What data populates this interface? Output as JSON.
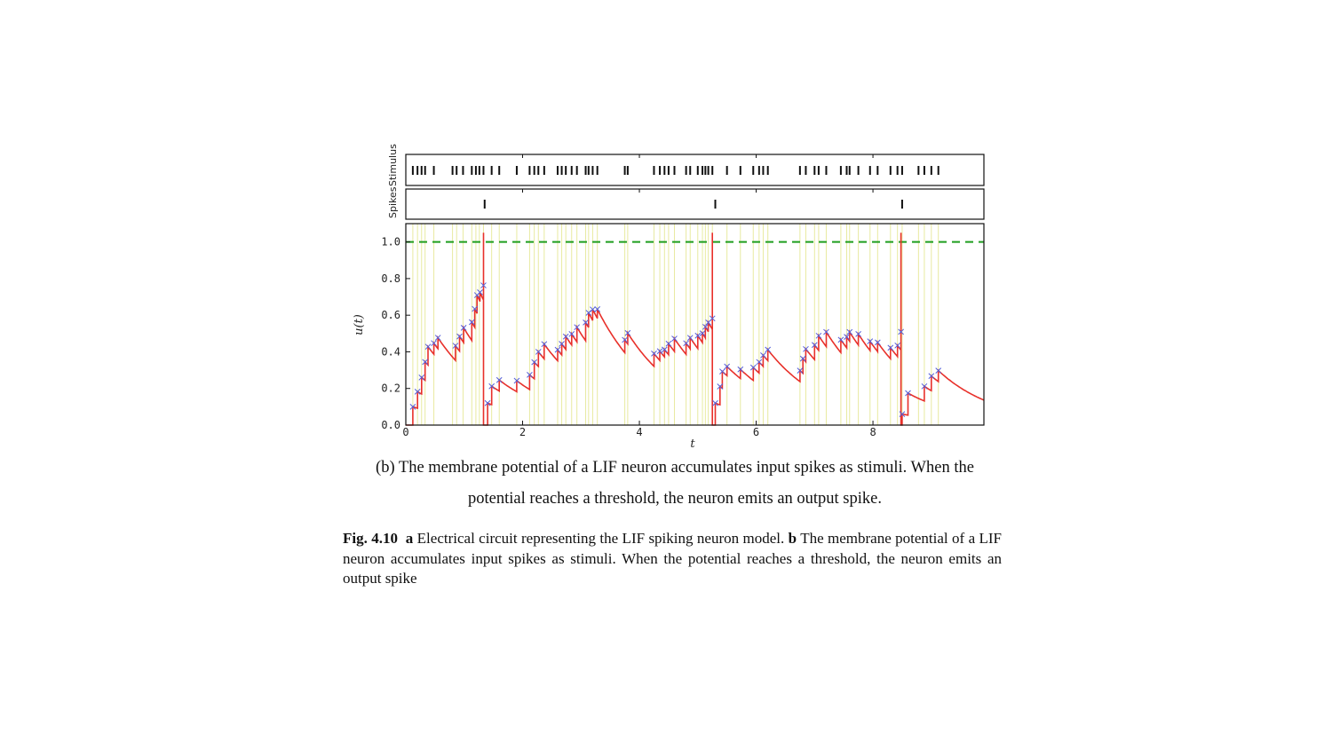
{
  "figure": {
    "subcaption_line1": "(b) The membrane potential of a LIF neuron accumulates input spikes as stimuli. When the",
    "subcaption_line2": "potential reaches a threshold, the neuron emits an output spike.",
    "caption": {
      "fig_label": "Fig. 4.10",
      "part_a_label": "a",
      "part_a_text": "Electrical circuit representing the LIF spiking neuron model.",
      "part_b_label": "b",
      "part_b_text": "The membrane potential of a LIF neuron accumulates input spikes as stimuli. When the potential reaches a threshold, the neuron emits an output spike"
    }
  },
  "chart_data": {
    "type": "line",
    "panels": {
      "stimulus_label": "Stimulus",
      "spikes_label": "Spikes"
    },
    "xlabel": "t",
    "ylabel": "u(t)",
    "xlim": [
      0,
      9.9
    ],
    "ylim": [
      0,
      1.1
    ],
    "x_ticks": [
      "0",
      "2",
      "4",
      "6",
      "8"
    ],
    "y_ticks": [
      "0.0",
      "0.2",
      "0.4",
      "0.6",
      "0.8",
      "1.0"
    ],
    "threshold": 1.0,
    "colors": {
      "potential": "#e8302a",
      "markers": "#5560d8",
      "threshold": "#1f9e1f",
      "stimulus_lines": "#e8eaa0",
      "ticks": "#111111"
    },
    "stimulus_times": [
      0.12,
      0.2,
      0.27,
      0.33,
      0.48,
      0.8,
      0.87,
      0.98,
      1.13,
      1.2,
      1.26,
      1.33,
      1.47,
      1.6,
      1.9,
      2.12,
      2.2,
      2.27,
      2.37,
      2.6,
      2.67,
      2.74,
      2.84,
      2.93,
      3.08,
      3.13,
      3.2,
      3.28,
      3.75,
      3.8,
      4.25,
      4.35,
      4.43,
      4.5,
      4.6,
      4.8,
      4.87,
      5.0,
      5.08,
      5.13,
      5.18,
      5.25,
      5.5,
      5.73,
      5.95,
      6.05,
      6.12,
      6.2,
      6.75,
      6.85,
      7.0,
      7.07,
      7.2,
      7.45,
      7.55,
      7.6,
      7.75,
      7.95,
      8.08,
      8.3,
      8.42,
      8.5,
      8.78,
      8.88,
      9.0,
      9.12
    ],
    "output_spikes": [
      1.35,
      5.3,
      8.5
    ],
    "potential": {
      "reset_value": 0.0,
      "input_times": [
        0.12,
        0.2,
        0.27,
        0.33,
        0.38,
        0.48,
        0.55,
        0.85,
        0.92,
        0.99,
        1.13,
        1.18,
        1.22,
        1.27,
        1.33,
        1.4,
        1.47,
        1.6,
        1.9,
        2.12,
        2.2,
        2.27,
        2.37,
        2.6,
        2.67,
        2.74,
        2.84,
        2.93,
        3.08,
        3.13,
        3.2,
        3.28,
        3.75,
        3.8,
        4.25,
        4.35,
        4.43,
        4.5,
        4.6,
        4.8,
        4.87,
        5.0,
        5.08,
        5.13,
        5.18,
        5.25,
        5.3,
        5.38,
        5.42,
        5.5,
        5.73,
        5.95,
        6.05,
        6.12,
        6.2,
        6.75,
        6.8,
        6.85,
        7.0,
        7.07,
        7.2,
        7.45,
        7.55,
        7.6,
        7.75,
        7.95,
        8.08,
        8.3,
        8.42,
        8.48,
        8.5,
        8.6,
        8.88,
        9.0,
        9.12
      ],
      "jump_sizes": [
        0.1,
        0.09,
        0.09,
        0.1,
        0.1,
        0.06,
        0.06,
        0.08,
        0.08,
        0.08,
        0.1,
        0.1,
        0.1,
        0.05,
        0.08,
        0.12,
        0.1,
        0.06,
        0.06,
        0.08,
        0.09,
        0.08,
        0.08,
        0.06,
        0.06,
        0.07,
        0.06,
        0.08,
        0.1,
        0.08,
        0.06,
        0.05,
        0.07,
        0.06,
        0.07,
        0.05,
        0.04,
        0.06,
        0.07,
        0.06,
        0.06,
        0.07,
        0.05,
        0.06,
        0.05,
        0.06,
        0.12,
        0.1,
        0.09,
        0.05,
        0.05,
        0.07,
        0.06,
        0.06,
        0.06,
        0.06,
        0.08,
        0.07,
        0.08,
        0.08,
        0.08,
        0.07,
        0.06,
        0.05,
        0.06,
        0.05,
        0.05,
        0.06,
        0.06,
        0.1,
        0.06,
        0.12,
        0.08,
        0.08,
        0.06
      ],
      "decay_tau": 1.0
    }
  }
}
